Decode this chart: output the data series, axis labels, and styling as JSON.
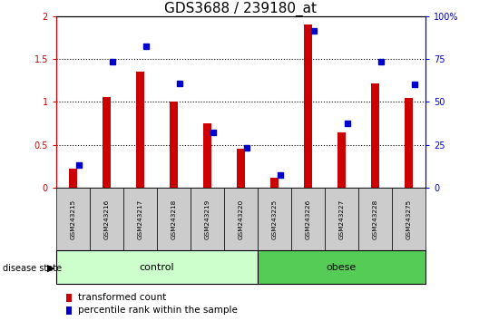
{
  "title": "GDS3688 / 239180_at",
  "samples": [
    "GSM243215",
    "GSM243216",
    "GSM243217",
    "GSM243218",
    "GSM243219",
    "GSM243220",
    "GSM243225",
    "GSM243226",
    "GSM243227",
    "GSM243228",
    "GSM243275"
  ],
  "red_values": [
    0.22,
    1.06,
    1.35,
    1.0,
    0.75,
    0.45,
    0.12,
    1.9,
    0.65,
    1.22,
    1.05
  ],
  "blue_values": [
    0.27,
    1.47,
    1.65,
    1.22,
    0.65,
    0.47,
    0.15,
    1.83,
    0.75,
    1.47,
    1.2
  ],
  "n_control": 6,
  "n_obese": 5,
  "ylim_left": [
    0,
    2
  ],
  "yticks_left": [
    0,
    0.5,
    1.0,
    1.5,
    2.0
  ],
  "ytick_labels_left": [
    "0",
    "0.5",
    "1",
    "1.5",
    "2"
  ],
  "yticks_right": [
    0,
    25,
    50,
    75,
    100
  ],
  "ytick_labels_right": [
    "0",
    "25",
    "50",
    "75",
    "100%"
  ],
  "red_color": "#cc0000",
  "blue_color": "#0000cc",
  "bar_width": 0.25,
  "control_bg": "#ccffcc",
  "obese_bg": "#55cc55",
  "sample_bg": "#cccccc",
  "title_fontsize": 11,
  "tick_fontsize": 7,
  "label_fontsize": 7.5
}
